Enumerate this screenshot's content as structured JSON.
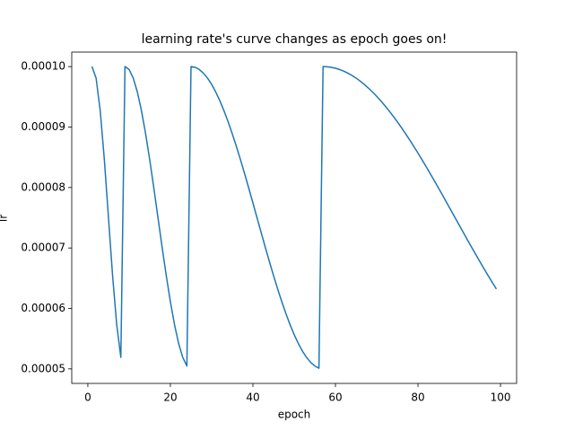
{
  "chart_data": {
    "type": "line",
    "title": "learning rate's curve changes as epoch goes on!",
    "xlabel": "epoch",
    "ylabel": "lr",
    "x": [
      1,
      2,
      3,
      4,
      5,
      6,
      7,
      8,
      9,
      10,
      11,
      12,
      13,
      14,
      15,
      16,
      17,
      18,
      19,
      20,
      21,
      22,
      23,
      24,
      25,
      26,
      27,
      28,
      29,
      30,
      31,
      32,
      33,
      34,
      35,
      36,
      37,
      38,
      39,
      40,
      41,
      42,
      43,
      44,
      45,
      46,
      47,
      48,
      49,
      50,
      51,
      52,
      53,
      54,
      55,
      56,
      57,
      58,
      59,
      60,
      61,
      62,
      63,
      64,
      65,
      66,
      67,
      68,
      69,
      70,
      71,
      72,
      73,
      74,
      75,
      76,
      77,
      78,
      79,
      80,
      81,
      82,
      83,
      84,
      85,
      86,
      87,
      88,
      89,
      90,
      91,
      92,
      93,
      94,
      95,
      96,
      97,
      98,
      99
    ],
    "series": [
      {
        "color": "#1f77b4",
        "values": [
          0.0001,
          9.81e-05,
          9.27e-05,
          8.46e-05,
          7.5e-05,
          6.54e-05,
          5.73e-05,
          5.19e-05,
          0.0001,
          9.952e-05,
          9.81e-05,
          9.579e-05,
          9.268e-05,
          8.889e-05,
          8.457e-05,
          7.988e-05,
          7.5e-05,
          7.012e-05,
          6.543e-05,
          6.111e-05,
          5.732e-05,
          5.421e-05,
          5.19e-05,
          5.048e-05,
          0.0001,
          9.988e-05,
          9.952e-05,
          9.892e-05,
          9.81e-05,
          9.705e-05,
          9.579e-05,
          9.433e-05,
          9.268e-05,
          9.086e-05,
          8.889e-05,
          8.679e-05,
          8.457e-05,
          8.226e-05,
          7.988e-05,
          7.745e-05,
          7.5e-05,
          7.255e-05,
          7.012e-05,
          6.774e-05,
          6.543e-05,
          6.321e-05,
          6.111e-05,
          5.914e-05,
          5.732e-05,
          5.567e-05,
          5.421e-05,
          5.295e-05,
          5.19e-05,
          5.108e-05,
          5.048e-05,
          5.012e-05,
          0.0001,
          9.997e-05,
          9.988e-05,
          9.973e-05,
          9.952e-05,
          9.925e-05,
          9.892e-05,
          9.854e-05,
          9.81e-05,
          9.76e-05,
          9.705e-05,
          9.644e-05,
          9.579e-05,
          9.508e-05,
          9.433e-05,
          9.352e-05,
          9.268e-05,
          9.179e-05,
          9.086e-05,
          8.989e-05,
          8.889e-05,
          8.785e-05,
          8.679e-05,
          8.569e-05,
          8.457e-05,
          8.342e-05,
          8.226e-05,
          8.107e-05,
          7.988e-05,
          7.867e-05,
          7.745e-05,
          7.623e-05,
          7.5e-05,
          7.377e-05,
          7.255e-05,
          7.133e-05,
          7.012e-05,
          6.893e-05,
          6.774e-05,
          6.658e-05,
          6.543e-05,
          6.431e-05,
          6.321e-05
        ]
      }
    ],
    "xlim": [
      -3.9,
      103.9
    ],
    "xticks": [
      0,
      20,
      40,
      60,
      80,
      100
    ],
    "ylim": [
      4.76e-05,
      0.0001024
    ],
    "yticks": [
      5e-05,
      6e-05,
      7e-05,
      8e-05,
      9e-05,
      {
        "value": 0.0001,
        "label": "0.00010"
      }
    ],
    "grid": false
  }
}
